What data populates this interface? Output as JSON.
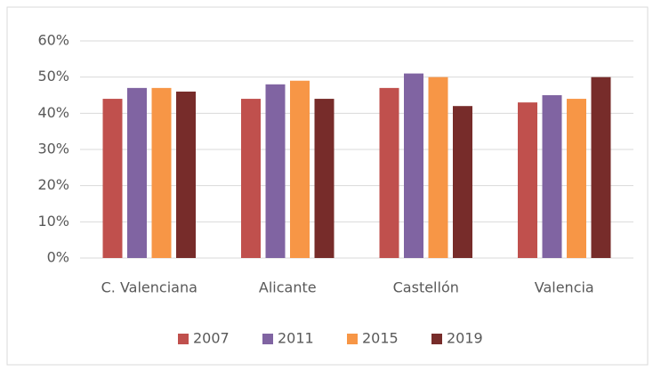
{
  "chart_data": {
    "type": "bar",
    "categories": [
      "C. Valenciana",
      "Alicante",
      "Castellón",
      "Valencia"
    ],
    "series": [
      {
        "name": "2007",
        "color": "#c0504d",
        "values": [
          44,
          44,
          47,
          43
        ]
      },
      {
        "name": "2011",
        "color": "#8064a2",
        "values": [
          47,
          48,
          51,
          45
        ]
      },
      {
        "name": "2015",
        "color": "#f79646",
        "values": [
          47,
          49,
          50,
          44
        ]
      },
      {
        "name": "2019",
        "color": "#772c2a",
        "values": [
          46,
          44,
          42,
          50
        ]
      }
    ],
    "ylim": [
      0,
      60
    ],
    "yticks": [
      {
        "value": 0,
        "label": "0%"
      },
      {
        "value": 10,
        "label": "10%"
      },
      {
        "value": 20,
        "label": "20%"
      },
      {
        "value": 30,
        "label": "30%"
      },
      {
        "value": 40,
        "label": "40%"
      },
      {
        "value": 50,
        "label": "50%"
      },
      {
        "value": 60,
        "label": "60%"
      }
    ],
    "grid": true,
    "legend": "bottom"
  }
}
